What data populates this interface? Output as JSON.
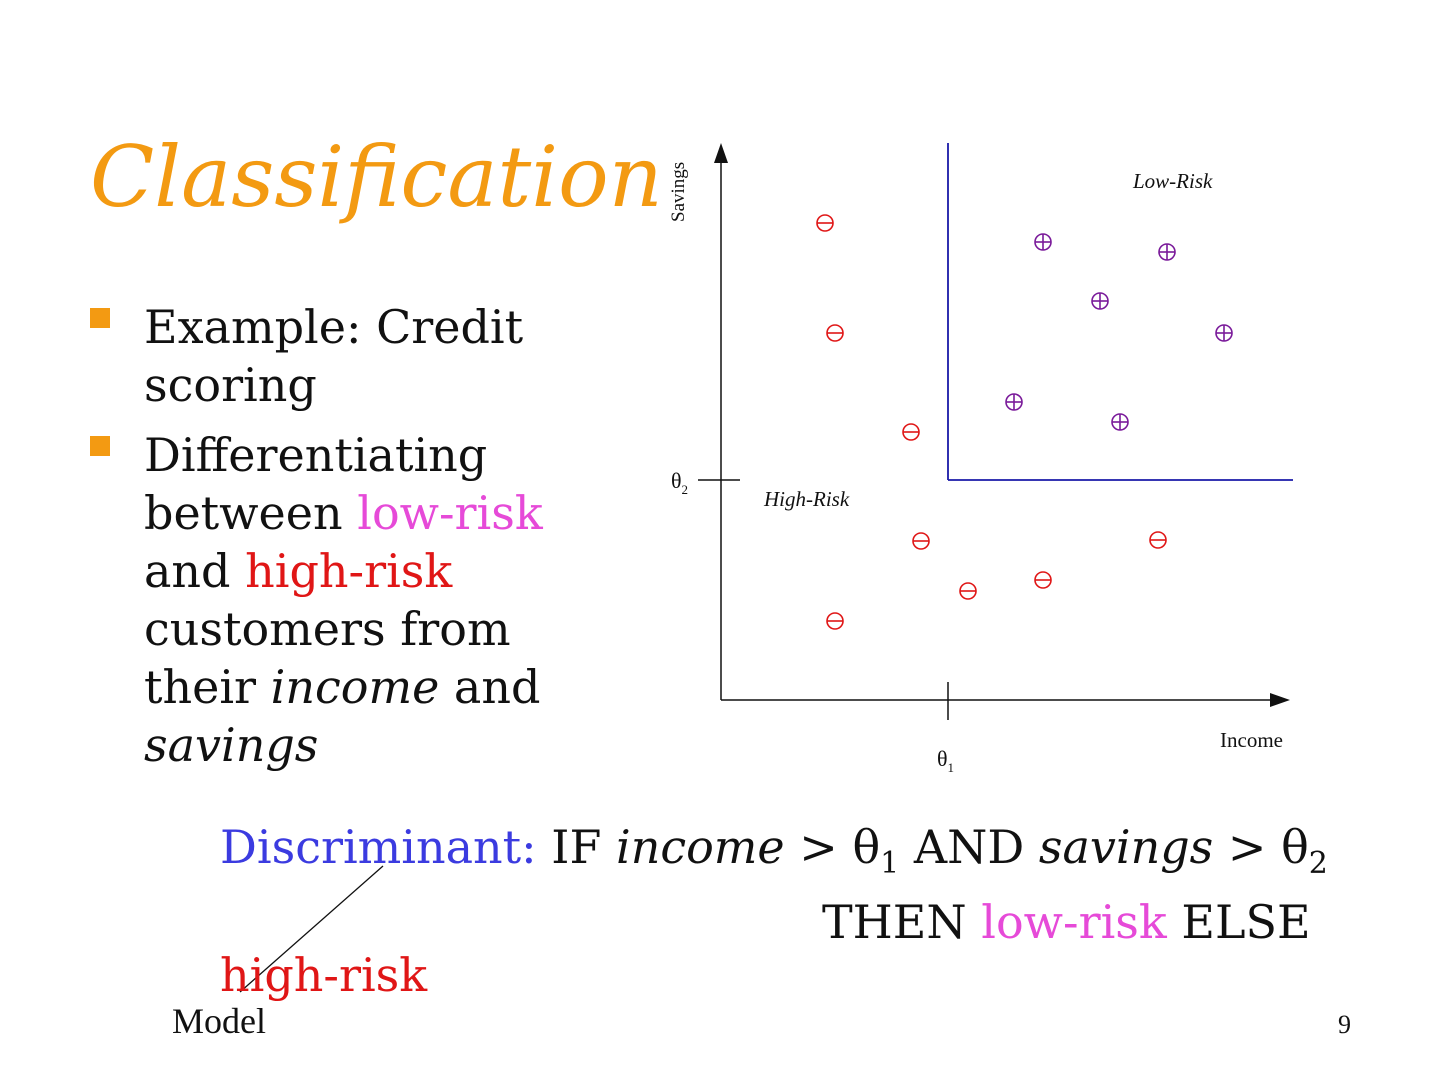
{
  "title": "Classification",
  "bullets": {
    "b1": "Example: Credit scoring",
    "b2_pre": "Differentiating between ",
    "b2_low": "low-risk",
    "b2_mid": " and ",
    "b2_high": "high-risk",
    "b2_post": " customers from their ",
    "b2_income": "income",
    "b2_and": " and ",
    "b2_savings": "savings"
  },
  "diagram": {
    "y_label": "Savings",
    "x_label": "Income",
    "theta1": "θ",
    "theta1_sub": "1",
    "theta2": "θ",
    "theta2_sub": "2",
    "low_risk_label": "Low-Risk",
    "high_risk_label": "High-Risk",
    "colors": {
      "low_risk_point": "#7a1a9a",
      "high_risk_point": "#e01616",
      "boundary": "#1a1aa8"
    }
  },
  "formula": {
    "label": "Discriminant:",
    "if": "IF",
    "income": "income",
    "gt1": ">",
    "theta": "θ",
    "sub1": "1",
    "and": "AND",
    "savings": "savings",
    "gt2": ">",
    "sub2": "2",
    "then": "THEN",
    "low": "low-risk",
    "else": "ELSE",
    "high": "high-risk"
  },
  "model_label": "Model",
  "page_number": "9"
}
